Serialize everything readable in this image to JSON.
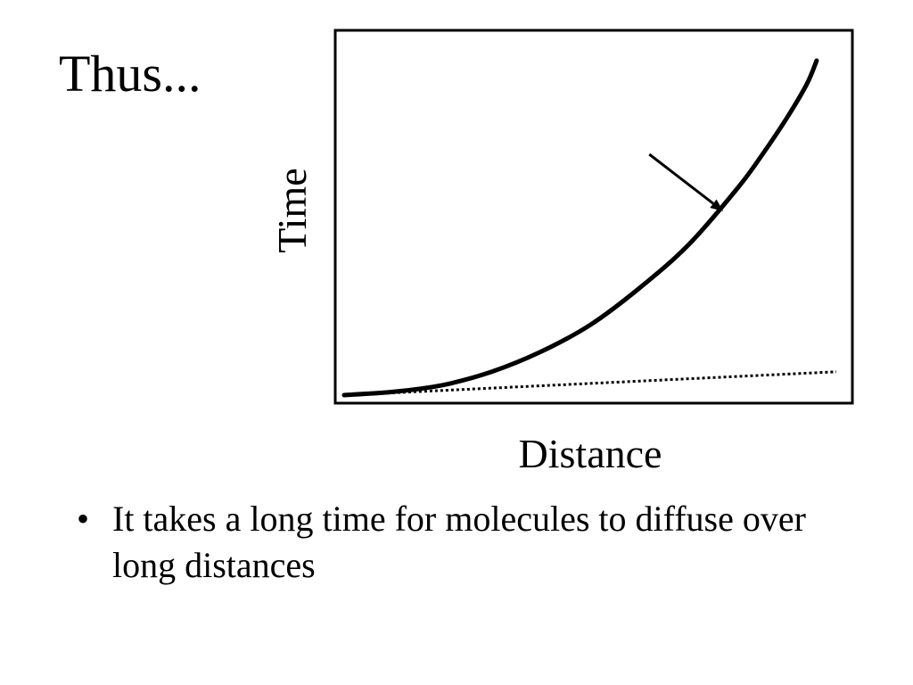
{
  "slide": {
    "title": "Thus...",
    "bullets": [
      {
        "marker": "•",
        "text": "It takes a long time for molecules to diffuse over long distances"
      }
    ]
  },
  "chart_data": {
    "type": "line",
    "title": "",
    "xlabel": "Distance",
    "ylabel": "Time",
    "x_ticks": [],
    "y_ticks": [],
    "grid": false,
    "legend": "none",
    "xlim": [
      0,
      1
    ],
    "ylim": [
      0,
      1
    ],
    "series": [
      {
        "style": "solid",
        "color": "#000000",
        "x": [
          0.0,
          0.1,
          0.2,
          0.3,
          0.4,
          0.5,
          0.6,
          0.7,
          0.8,
          0.85,
          0.9,
          0.94,
          0.96
        ],
        "y": [
          0.0,
          0.01,
          0.03,
          0.07,
          0.13,
          0.21,
          0.32,
          0.45,
          0.62,
          0.72,
          0.83,
          0.93,
          1.0
        ]
      },
      {
        "style": "dotted",
        "color": "#000000",
        "x": [
          0.0,
          1.0
        ],
        "y": [
          0.0,
          0.07
        ]
      }
    ],
    "annotations": [
      {
        "type": "arrow",
        "from": [
          0.62,
          0.72
        ],
        "to": [
          0.77,
          0.55
        ]
      }
    ]
  }
}
